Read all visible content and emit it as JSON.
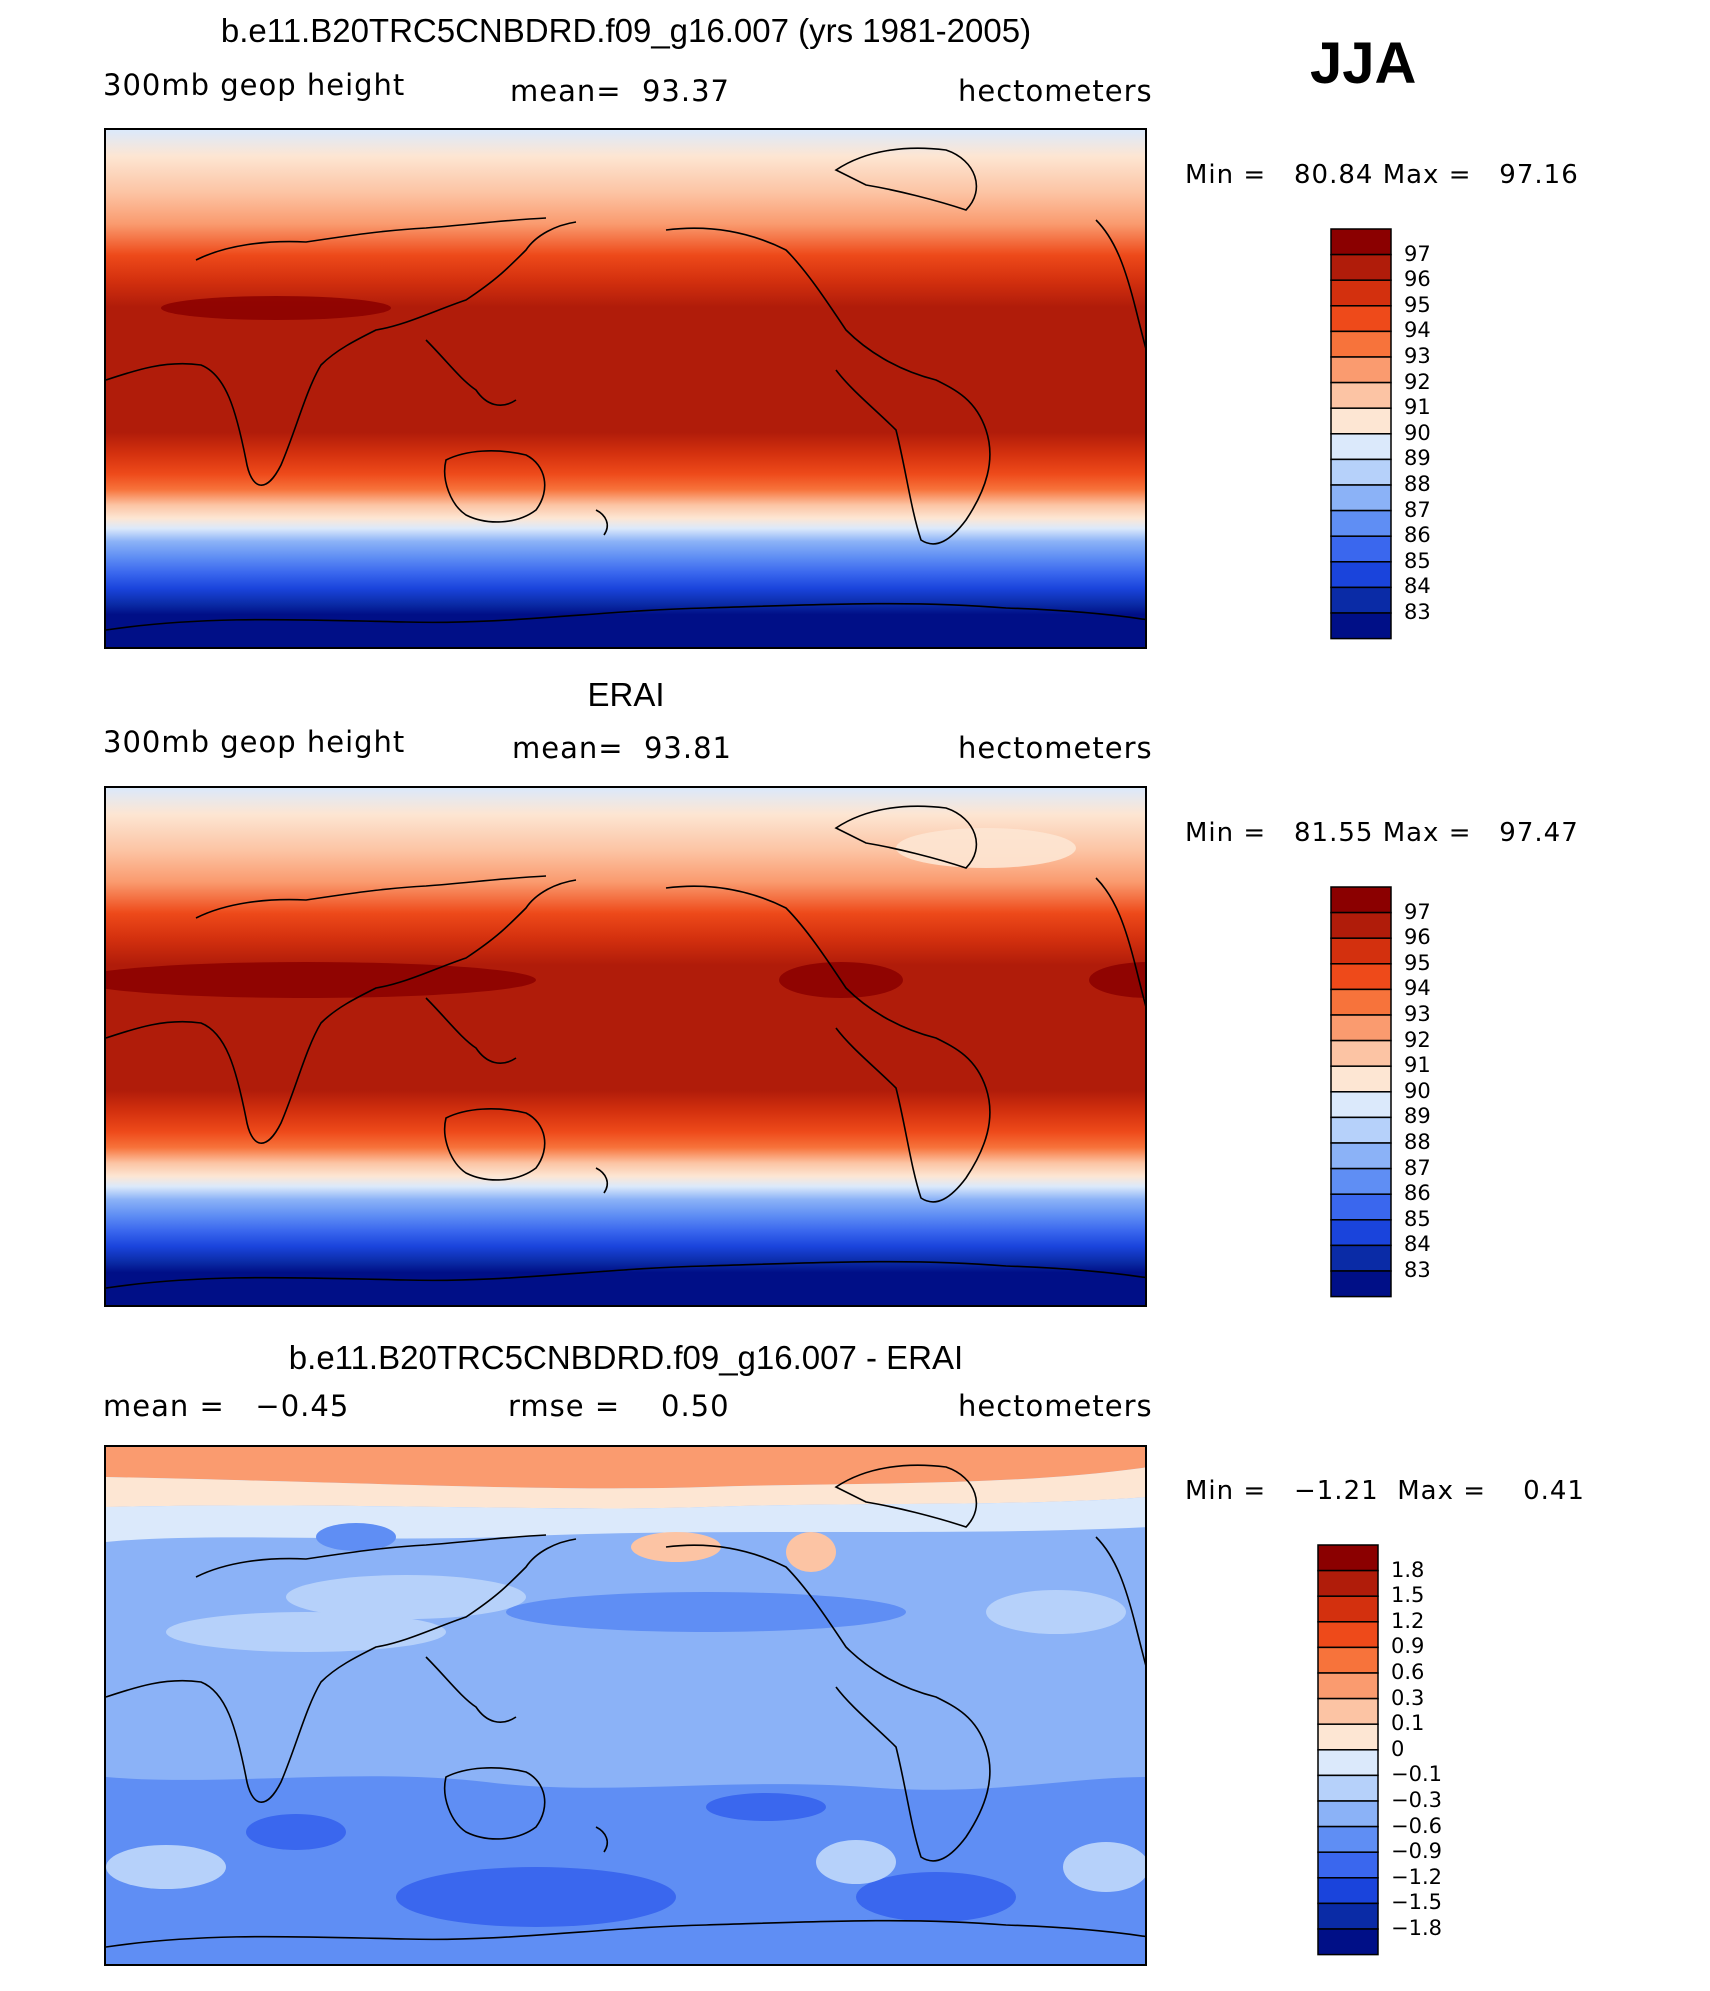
{
  "season": "JJA",
  "units": "hectometers",
  "panels": [
    {
      "title": "b.e11.B20TRC5CNBDRD.f09_g16.007 (yrs 1981-2005)",
      "left": "300mb geop height",
      "center_label": "mean=",
      "center_value": "93.37",
      "right": "hectometers",
      "min_label": "Min =",
      "min": "80.84",
      "max_label": "Max =",
      "max": "97.16"
    },
    {
      "title": "ERAI",
      "left": "300mb geop height",
      "center_label": "mean=",
      "center_value": "93.81",
      "right": "hectometers",
      "min_label": "Min =",
      "min": "81.55",
      "max_label": "Max =",
      "max": "97.47"
    },
    {
      "title": "b.e11.B20TRC5CNBDRD.f09_g16.007 - ERAI",
      "left_label": "mean =",
      "left_value": "−0.45",
      "center_label": "rmse =",
      "center_value": "0.50",
      "right": "hectometers",
      "min_label": "Min =",
      "min": "−1.21",
      "max_label": "Max =",
      "max": "0.41"
    }
  ],
  "legend_field": {
    "labels": [
      "97",
      "96",
      "95",
      "94",
      "93",
      "92",
      "91",
      "90",
      "89",
      "88",
      "87",
      "86",
      "85",
      "84",
      "83"
    ],
    "colors": [
      "#8b0000",
      "#b01c0a",
      "#d3300e",
      "#ee4a1a",
      "#f7733b",
      "#fa9b6f",
      "#fcc4a4",
      "#fde6d3",
      "#dbe9fb",
      "#b6d1fa",
      "#8bb2f7",
      "#5f8ef4",
      "#3a67ee",
      "#1a44dc",
      "#0a2ba6",
      "#000f87"
    ]
  },
  "legend_diff": {
    "labels": [
      "1.8",
      "1.5",
      "1.2",
      "0.9",
      "0.6",
      "0.3",
      "0.1",
      "0",
      "−0.1",
      "−0.3",
      "−0.6",
      "−0.9",
      "−1.2",
      "−1.5",
      "−1.8"
    ],
    "colors": [
      "#8b0000",
      "#b01c0a",
      "#d3300e",
      "#ee4a1a",
      "#f7733b",
      "#fa9b6f",
      "#fcc4a4",
      "#fde6d3",
      "#dbe9fb",
      "#b6d1fa",
      "#8bb2f7",
      "#5f8ef4",
      "#3a67ee",
      "#1a44dc",
      "#0a2ba6",
      "#000f87"
    ]
  }
}
